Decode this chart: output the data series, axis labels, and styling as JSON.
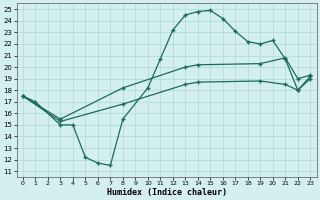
{
  "xlabel": "Humidex (Indice chaleur)",
  "bg_color": "#d4efef",
  "grid_color": "#b0d8d0",
  "line_color": "#1a6b5e",
  "xlim": [
    -0.5,
    23.5
  ],
  "ylim": [
    10.5,
    25.5
  ],
  "xticks": [
    0,
    1,
    2,
    3,
    4,
    5,
    6,
    7,
    8,
    9,
    10,
    11,
    12,
    13,
    14,
    15,
    16,
    17,
    18,
    19,
    20,
    21,
    22,
    23
  ],
  "yticks": [
    11,
    12,
    13,
    14,
    15,
    16,
    17,
    18,
    19,
    20,
    21,
    22,
    23,
    24,
    25
  ],
  "curve1_x": [
    0,
    1,
    3,
    4,
    5,
    6,
    7,
    8,
    10,
    11,
    12,
    13,
    14,
    15,
    16,
    17,
    18,
    19,
    20,
    21,
    22,
    23
  ],
  "curve1_y": [
    17.5,
    17.0,
    15.0,
    15.0,
    12.2,
    11.7,
    11.5,
    15.5,
    18.2,
    20.7,
    23.2,
    24.5,
    24.8,
    24.9,
    24.2,
    23.1,
    22.2,
    22.0,
    22.3,
    20.7,
    18.0,
    19.2
  ],
  "curve2_x": [
    0,
    3,
    8,
    13,
    14,
    19,
    21,
    22,
    23
  ],
  "curve2_y": [
    17.5,
    15.5,
    18.2,
    20.0,
    20.2,
    20.3,
    20.8,
    19.0,
    19.3
  ],
  "curve3_x": [
    0,
    3,
    8,
    13,
    14,
    19,
    21,
    22,
    23
  ],
  "curve3_y": [
    17.5,
    15.3,
    16.8,
    18.5,
    18.7,
    18.8,
    18.5,
    18.0,
    19.0
  ]
}
